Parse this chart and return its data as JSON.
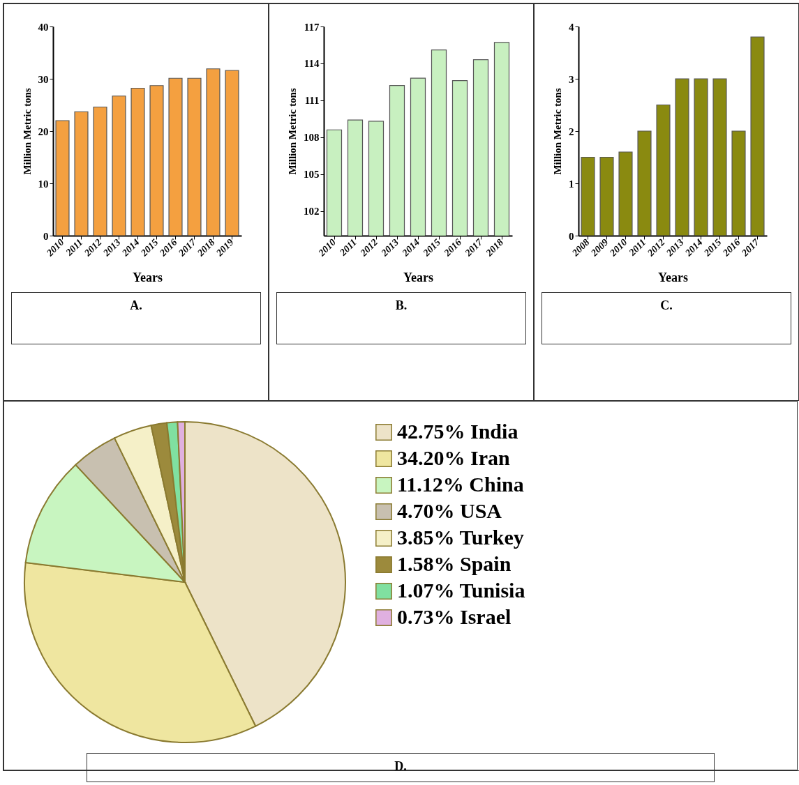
{
  "chart_data": [
    {
      "type": "bar",
      "categories": [
        "2010",
        "2011",
        "2012",
        "2013",
        "2014",
        "2015",
        "2016",
        "2017",
        "2018",
        "2019"
      ],
      "values": [
        22.0,
        23.7,
        24.6,
        26.7,
        28.2,
        28.7,
        30.1,
        30.1,
        31.9,
        31.6
      ],
      "color": "#f4a040",
      "xlabel": "Years",
      "ylabel": "Million Metric tons",
      "ylim": [
        0,
        40
      ],
      "yticks": [
        0,
        10,
        20,
        30,
        40
      ],
      "annotations": [
        "A."
      ]
    },
    {
      "type": "bar",
      "categories": [
        "2010",
        "2011",
        "2012",
        "2013",
        "2014",
        "2015",
        "2016",
        "2017",
        "2018"
      ],
      "values": [
        108.6,
        109.4,
        109.3,
        112.2,
        112.8,
        115.1,
        112.6,
        114.3,
        115.7
      ],
      "color": "#c8f0c0",
      "xlabel": "Years",
      "ylabel": "Million Metric tons",
      "ylim": [
        100,
        117
      ],
      "yticks": [
        102,
        105,
        108,
        111,
        114,
        117
      ],
      "annotations": [
        "B."
      ]
    },
    {
      "type": "bar",
      "categories": [
        "2008",
        "2009",
        "2010",
        "2011",
        "2012",
        "2013",
        "2014",
        "2015",
        "2016",
        "2017"
      ],
      "values": [
        1.5,
        1.5,
        1.6,
        2,
        2.5,
        3,
        3,
        3,
        2,
        3.8
      ],
      "color": "#8a8a10",
      "xlabel": "Years",
      "ylabel": "Million Metric tons",
      "ylim": [
        0,
        4
      ],
      "yticks": [
        0,
        1,
        2,
        3,
        4
      ],
      "annotations": [
        "C."
      ]
    },
    {
      "type": "pie",
      "categories": [
        "India",
        "Iran",
        "China",
        "USA",
        "Turkey",
        "Spain",
        "Tunisia",
        "Israel"
      ],
      "values": [
        42.75,
        34.2,
        11.12,
        4.7,
        3.85,
        1.58,
        1.07,
        0.73
      ],
      "value_labels": [
        "42.75%",
        "34.20%",
        "11.12%",
        "4.70%",
        "3.85%",
        "1.58%",
        "1.07%",
        "0.73%"
      ],
      "colors": [
        "#ede3c8",
        "#efe6a0",
        "#c8f5c0",
        "#c8c0b0",
        "#f5f0c8",
        "#9c8a3c",
        "#80e0a0",
        "#e0b0e0"
      ],
      "legend": "right",
      "annotations": [
        "D."
      ]
    }
  ]
}
